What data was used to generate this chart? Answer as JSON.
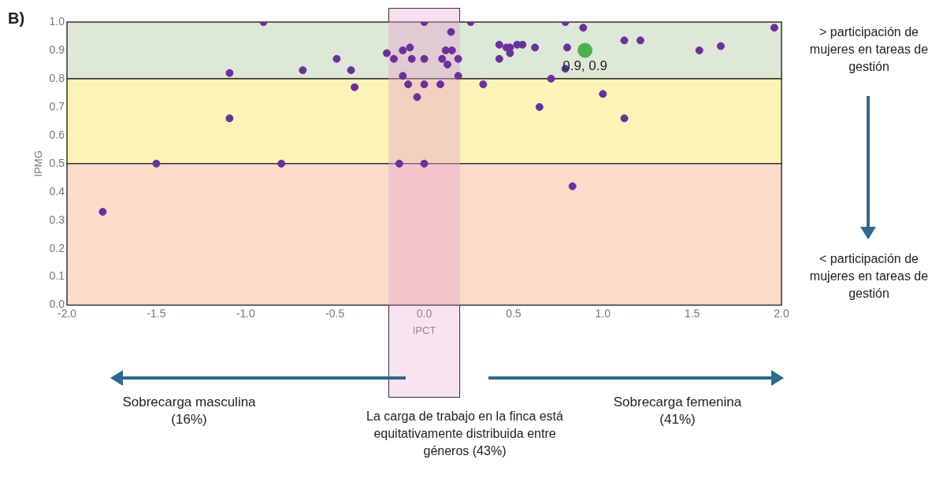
{
  "chart_data": {
    "type": "scatter",
    "xlabel": "IPCT",
    "ylabel": "IPMG",
    "xlim": [
      -2,
      2
    ],
    "xticks": [
      {
        "value": -2,
        "label": "-2.0"
      },
      {
        "value": -1.5,
        "label": "-1.5"
      },
      {
        "value": -1,
        "label": "-1.0"
      },
      {
        "value": -0.5,
        "label": "-0.5"
      },
      {
        "value": 0,
        "label": "0.0"
      },
      {
        "value": 0.5,
        "label": "0.5"
      },
      {
        "value": 1,
        "label": "1.0"
      },
      {
        "value": 1.5,
        "label": "1.5"
      },
      {
        "value": 2,
        "label": "2.0"
      }
    ],
    "ylim": [
      0,
      1
    ],
    "yticks": [
      {
        "value": 0,
        "label": "0.0"
      },
      {
        "value": 0.1,
        "label": "0.1"
      },
      {
        "value": 0.2,
        "label": "0.2"
      },
      {
        "value": 0.3,
        "label": "0.3"
      },
      {
        "value": 0.4,
        "label": "0.4"
      },
      {
        "value": 0.5,
        "label": "0.5"
      },
      {
        "value": 0.6,
        "label": "0.6"
      },
      {
        "value": 0.7,
        "label": "0.7"
      },
      {
        "value": 0.8,
        "label": "0.8"
      },
      {
        "value": 0.9,
        "label": "0.9"
      },
      {
        "value": 1,
        "label": "1.0"
      }
    ],
    "grid": false,
    "legend": false,
    "marker": "circle",
    "bands": [
      {
        "axis": "y",
        "from": 0.8,
        "to": 1.0,
        "color": "#dde9d6"
      },
      {
        "axis": "y",
        "from": 0.5,
        "to": 0.8,
        "color": "#fcf4b6"
      },
      {
        "axis": "y",
        "from": 0,
        "to": 0.5,
        "color": "#fbdccb"
      },
      {
        "axis": "x",
        "from": -0.2,
        "to": 0.2,
        "color": "#e7a6cf"
      }
    ],
    "series": [
      {
        "color": "#6b2fa0",
        "x": [
          -1.8,
          -1.5,
          -1.09,
          -1.09,
          -0.9,
          -0.8,
          -0.68,
          -0.49,
          -0.41,
          -0.39,
          -0.21,
          -0.17,
          -0.12,
          -0.08,
          -0.07,
          0,
          0,
          0.15,
          0.12,
          0.155,
          0.1,
          0.13,
          -0.12,
          -0.09,
          0,
          0.09,
          -0.04,
          -0.14,
          0,
          0.19,
          0.26,
          0.79,
          0.89,
          1.96,
          0.42,
          0.46,
          0.48,
          0.48,
          0.52,
          0.55,
          0.62,
          0.42,
          0.8,
          1.12,
          1.21,
          1.54,
          1.66,
          0.19,
          0.33,
          0.71,
          0.79,
          1.0,
          0.645,
          1.12,
          0.83
        ],
        "values": [
          0.33,
          0.5,
          0.82,
          0.66,
          1.0,
          0.5,
          0.83,
          0.87,
          0.83,
          0.77,
          0.89,
          0.87,
          0.9,
          0.91,
          0.87,
          1.0,
          0.87,
          0.965,
          0.9,
          0.9,
          0.87,
          0.85,
          0.81,
          0.78,
          0.78,
          0.78,
          0.735,
          0.5,
          0.5,
          0.87,
          1.0,
          1.0,
          0.98,
          0.98,
          0.92,
          0.91,
          0.91,
          0.89,
          0.92,
          0.92,
          0.91,
          0.87,
          0.91,
          0.935,
          0.935,
          0.9,
          0.915,
          0.81,
          0.78,
          0.8,
          0.835,
          0.746,
          0.7,
          0.66,
          0.42
        ]
      },
      {
        "color": "#4caf50",
        "x": [
          0.9
        ],
        "values": [
          0.9
        ]
      }
    ],
    "annotations": [
      {
        "text": "0.9, 0.9",
        "x": 0.9,
        "y": 0.9
      },
      "B)",
      "> participación de mujeres en tareas de gestión",
      "< participación de mujeres en tareas de gestión",
      "Sobrecarga masculina (16%)",
      "La carga de trabajo en la finca está equitativamente distribuida entre géneros (43%)",
      "Sobrecarga femenina (41%)"
    ]
  }
}
